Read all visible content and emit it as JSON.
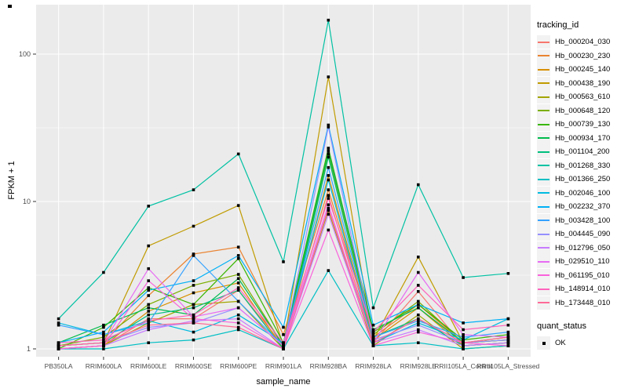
{
  "figure": {
    "legend1_title": "tracking_id",
    "legend2_title": "quant_status",
    "quant_ok_label": "OK"
  },
  "colors": {
    "panel_bg": "#EBEBEB",
    "grid_major": "#FFFFFF",
    "grid_minor": "#FFFFFF",
    "tick_text": "#4D4D4D",
    "axis_title_text": "#000000",
    "point": "#000000",
    "legend_key_bg": "#F2F2F2"
  },
  "chart_data": {
    "type": "line",
    "title": "",
    "xlabel": "sample_name",
    "ylabel": "FPKM + 1",
    "y_scale": "log10",
    "y_ticks": [
      1,
      10,
      100
    ],
    "y_minor_ticks": [
      3.1623,
      31.623
    ],
    "ylim": [
      0.88,
      220
    ],
    "grid": true,
    "legend_position": "right",
    "point_marker": "black-square",
    "categories": [
      "PB350LA",
      "RRIM600LA",
      "RRIM600LE",
      "RRIM600SE",
      "RRIM600PE",
      "RRIM901LA",
      "RRIM928BA",
      "RRIM928LA",
      "RRIM928LE",
      "RRII105LA_Control",
      "RRII105LA_Stressed"
    ],
    "series": [
      {
        "name": "Hb_000204_030",
        "color": "#F8766D",
        "values": [
          1.0,
          1.05,
          1.6,
          1.6,
          2.5,
          1.05,
          11,
          1.1,
          2.45,
          1.05,
          1.1
        ]
      },
      {
        "name": "Hb_000230_230",
        "color": "#EA8331",
        "values": [
          1.05,
          1.1,
          2.3,
          4.4,
          4.9,
          1.25,
          12,
          1.2,
          2.0,
          1.1,
          1.15
        ]
      },
      {
        "name": "Hb_000245_140",
        "color": "#D89000",
        "values": [
          1.0,
          1.05,
          1.8,
          2.4,
          2.8,
          1.0,
          15,
          1.15,
          1.9,
          1.05,
          1.1
        ]
      },
      {
        "name": "Hb_000438_190",
        "color": "#C09B00",
        "values": [
          1.05,
          1.1,
          5.0,
          6.8,
          9.4,
          1.05,
          70,
          1.15,
          4.2,
          1.1,
          1.15
        ]
      },
      {
        "name": "Hb_000563_610",
        "color": "#A3A500",
        "values": [
          1.0,
          1.05,
          1.5,
          2.0,
          2.1,
          1.0,
          8.7,
          1.05,
          1.7,
          1.0,
          1.05
        ]
      },
      {
        "name": "Hb_000648_120",
        "color": "#7CAE00",
        "values": [
          1.05,
          1.2,
          2.0,
          2.7,
          3.2,
          1.05,
          21,
          1.25,
          2.1,
          1.1,
          1.2
        ]
      },
      {
        "name": "Hb_000739_130",
        "color": "#39B600",
        "values": [
          1.0,
          1.4,
          2.6,
          2.0,
          4.1,
          1.1,
          23,
          1.3,
          2.0,
          1.15,
          1.25
        ]
      },
      {
        "name": "Hb_000934_170",
        "color": "#00BB4E",
        "values": [
          1.1,
          1.45,
          1.9,
          1.7,
          3.0,
          1.05,
          22,
          1.35,
          1.9,
          1.1,
          1.15
        ]
      },
      {
        "name": "Hb_001104_200",
        "color": "#00BF7D",
        "values": [
          1.05,
          1.1,
          1.7,
          1.9,
          2.5,
          1.0,
          20,
          1.2,
          1.6,
          1.05,
          1.1
        ]
      },
      {
        "name": "Hb_001268_330",
        "color": "#00C1A3",
        "values": [
          1.6,
          3.3,
          9.3,
          12,
          21,
          3.9,
          170,
          1.9,
          13,
          3.05,
          3.25
        ]
      },
      {
        "name": "Hb_001366_250",
        "color": "#00BFC4",
        "values": [
          1.0,
          1.0,
          1.1,
          1.15,
          1.35,
          1.0,
          3.4,
          1.05,
          1.1,
          1.0,
          1.05
        ]
      },
      {
        "name": "Hb_002046_100",
        "color": "#00BAE0",
        "values": [
          1.5,
          1.25,
          1.55,
          1.3,
          1.7,
          1.1,
          14,
          1.1,
          1.5,
          1.15,
          1.6
        ]
      },
      {
        "name": "Hb_002232_370",
        "color": "#00B0F6",
        "values": [
          1.1,
          1.3,
          2.5,
          2.9,
          4.3,
          1.4,
          33,
          1.45,
          2.0,
          1.5,
          1.6
        ]
      },
      {
        "name": "Hb_003428_100",
        "color": "#35A2FF",
        "values": [
          1.45,
          1.25,
          1.5,
          4.3,
          2.1,
          1.05,
          17,
          1.2,
          1.55,
          1.2,
          1.3
        ]
      },
      {
        "name": "Hb_004445_090",
        "color": "#9590FF",
        "values": [
          1.05,
          1.1,
          1.4,
          1.5,
          1.9,
          1.05,
          32,
          1.15,
          1.45,
          1.1,
          1.15
        ]
      },
      {
        "name": "Hb_012796_050",
        "color": "#C77CFF",
        "values": [
          1.0,
          1.05,
          1.35,
          1.55,
          1.6,
          1.0,
          8.2,
          1.1,
          1.35,
          1.05,
          1.1
        ]
      },
      {
        "name": "Hb_029510_110",
        "color": "#E76BF3",
        "values": [
          1.05,
          1.1,
          3.5,
          1.65,
          1.9,
          1.05,
          9.5,
          1.1,
          3.3,
          1.25,
          1.2
        ]
      },
      {
        "name": "Hb_061195_010",
        "color": "#FA62DB",
        "values": [
          1.0,
          1.05,
          2.9,
          1.6,
          1.5,
          1.0,
          6.4,
          1.05,
          1.3,
          1.1,
          1.05
        ]
      },
      {
        "name": "Hb_148914_010",
        "color": "#FF62BC",
        "values": [
          1.1,
          1.15,
          1.55,
          1.7,
          2.6,
          1.1,
          10.5,
          1.3,
          2.7,
          1.35,
          1.45
        ]
      },
      {
        "name": "Hb_173448_010",
        "color": "#FF6A98",
        "values": [
          1.05,
          1.1,
          1.45,
          1.5,
          1.4,
          1.0,
          9.0,
          1.1,
          1.6,
          1.1,
          1.2
        ]
      }
    ]
  }
}
